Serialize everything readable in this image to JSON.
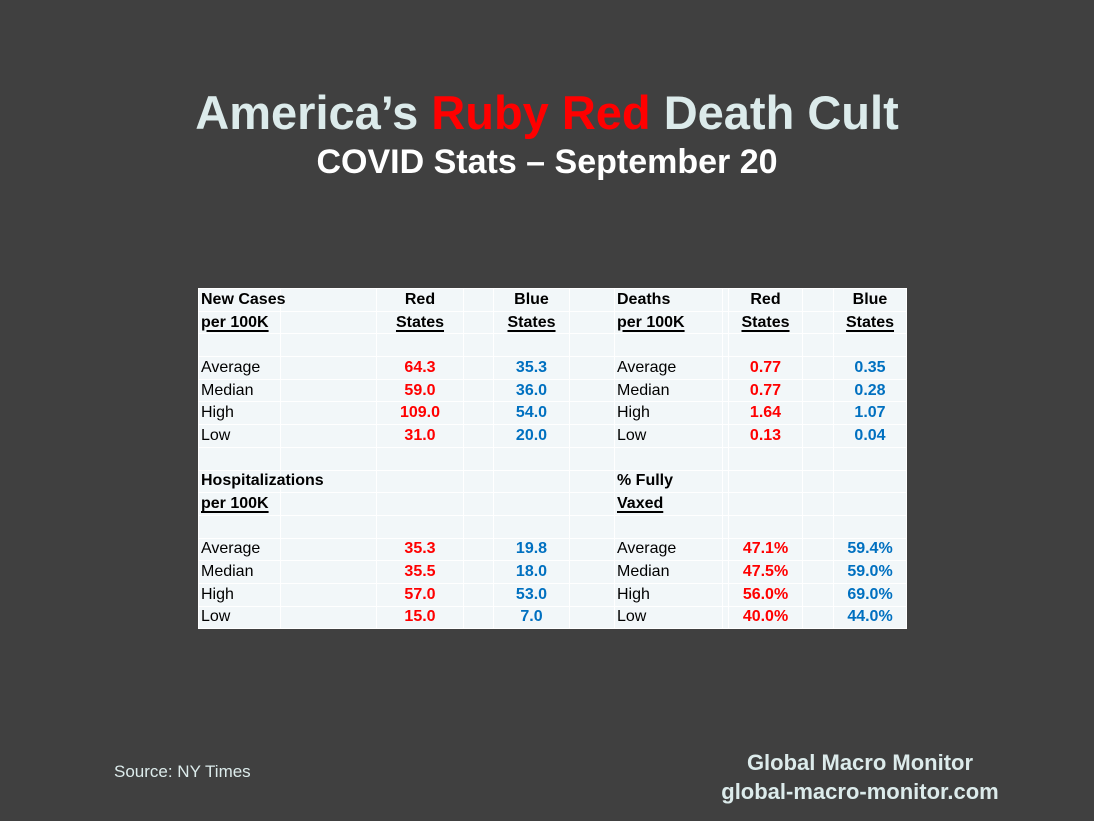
{
  "title": {
    "part1": "America’s ",
    "part2": "Ruby Red",
    "part3": " Death Cult"
  },
  "subtitle": "COVID Stats – September 20",
  "colors": {
    "red": "#ff0000",
    "blue": "#0070c0",
    "title": "#dcebeb",
    "background": "#404040"
  },
  "sections": [
    {
      "left": {
        "title": "New Cases",
        "subtitle": "per 100K",
        "red_header": "Red",
        "red_sub": "States",
        "blue_header": "Blue",
        "blue_sub": "States",
        "rows": [
          [
            "Average",
            "64.3",
            "35.3"
          ],
          [
            "Median",
            "59.0",
            "36.0"
          ],
          [
            "High",
            "109.0",
            "54.0"
          ],
          [
            "Low",
            "31.0",
            "20.0"
          ]
        ]
      },
      "right": {
        "title": "Deaths",
        "subtitle": "per 100K",
        "red_header": "Red",
        "red_sub": "States",
        "blue_header": "Blue",
        "blue_sub": "States",
        "rows": [
          [
            "Average",
            "0.77",
            "0.35"
          ],
          [
            "Median",
            "0.77",
            "0.28"
          ],
          [
            "High",
            "1.64",
            "1.07"
          ],
          [
            "Low",
            "0.13",
            "0.04"
          ]
        ]
      }
    },
    {
      "left": {
        "title": "Hospitalizations",
        "subtitle": "per 100K",
        "rows": [
          [
            "Average",
            "35.3",
            "19.8"
          ],
          [
            "Median",
            "35.5",
            "18.0"
          ],
          [
            "High",
            "57.0",
            "53.0"
          ],
          [
            "Low",
            "15.0",
            "7.0"
          ]
        ]
      },
      "right": {
        "title": "% Fully",
        "subtitle": "Vaxed",
        "rows": [
          [
            "Average",
            "47.1%",
            "59.4%"
          ],
          [
            "Median",
            "47.5%",
            "59.0%"
          ],
          [
            "High",
            "56.0%",
            "69.0%"
          ],
          [
            "Low",
            "40.0%",
            "44.0%"
          ]
        ]
      }
    }
  ],
  "footer": {
    "source": "Source: NY Times",
    "brand": "Global Macro Monitor",
    "url": "global-macro-monitor.com"
  }
}
